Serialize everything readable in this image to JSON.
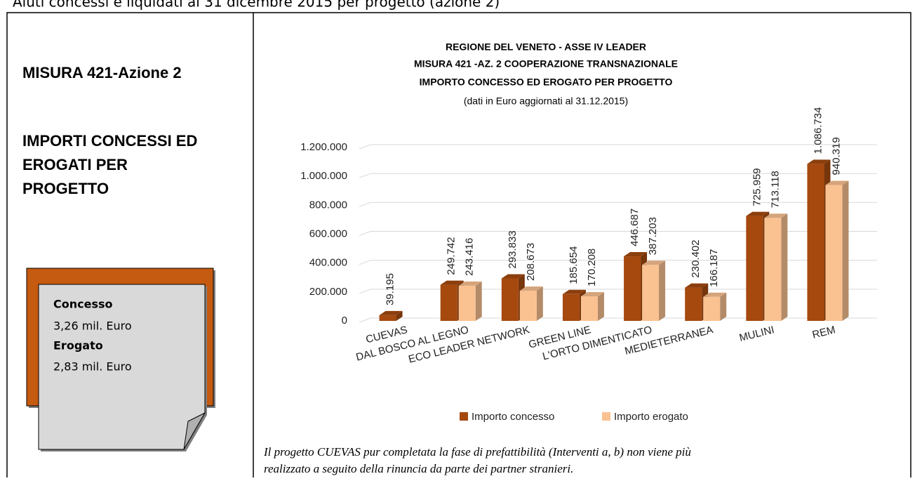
{
  "header": {
    "title": "Aiuti concessi e liquidati al 31 dicembre 2015 per progetto (azione 2)"
  },
  "left": {
    "measure": "MISURA 421-Azione 2",
    "heading": [
      "IMPORTI CONCESSI ED",
      "EROGATI PER",
      "PROGETTO"
    ],
    "note": [
      "Concesso",
      "3,26 mil. Euro",
      "Erogato",
      "2,83 mil. Euro"
    ]
  },
  "chart_data": {
    "type": "bar3d",
    "title": [
      "REGIONE DEL VENETO - ASSE IV LEADER",
      "MISURA 421 -AZ. 2 COOPERAZIONE TRANSNAZIONALE",
      "IMPORTO CONCESSO ED EROGATO PER PROGETTO"
    ],
    "subtitle": "(dati in Euro aggiornati al 31.12.2015)",
    "categories": [
      "CUEVAS",
      "DAL BOSCO AL LEGNO",
      "ECO LEADER NETWORK",
      "GREEN LINE",
      "L'ORTO DIMENTICATO",
      "MEDIETERRANEA",
      "MULINI",
      "REM"
    ],
    "series": [
      {
        "name": "Importo concesso",
        "color": "#a5490f",
        "values": [
          39195,
          249742,
          293833,
          185654,
          446687,
          230402,
          725959,
          1086734
        ],
        "value_labels": [
          "39.195",
          "249.742",
          "293.833",
          "185.654",
          "446.687",
          "230.402",
          "725.959",
          "1.086.734"
        ]
      },
      {
        "name": "Importo erogato",
        "color": "#fac191",
        "values": [
          null,
          243416,
          208673,
          170208,
          387203,
          166187,
          713118,
          940319
        ],
        "value_labels": [
          null,
          "243.416",
          "208.673",
          "170.208",
          "387.203",
          "166.187",
          "713.118",
          "940.319"
        ]
      }
    ],
    "ylim": [
      0,
      1200000
    ],
    "yticks": [
      0,
      {
        "value": 200000,
        "label": "200.000"
      },
      {
        "value": 400000,
        "label": "400.000"
      },
      {
        "value": 600000,
        "label": "600.000"
      },
      {
        "value": 800000,
        "label": "800.000"
      },
      {
        "value": 1000000,
        "label": "1.000.000"
      },
      {
        "value": 1200000,
        "label": "1.200.000"
      }
    ],
    "grid": true,
    "legend": "bottom"
  },
  "footnote": [
    "Il progetto CUEVAS pur completata la fase di prefattibilità (Interventi a, b) non viene più",
    "realizzato a seguito della rinuncia da parte dei partner stranieri."
  ]
}
